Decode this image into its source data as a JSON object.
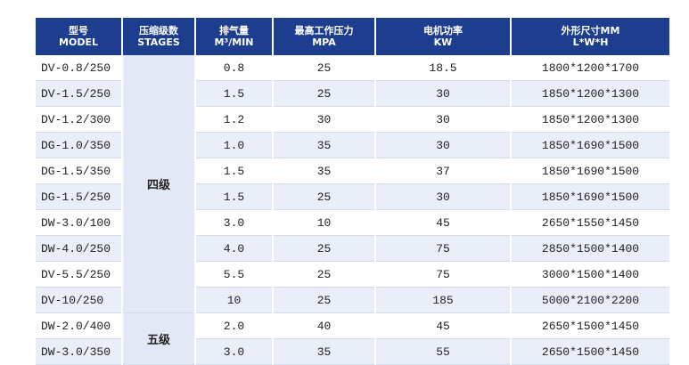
{
  "table": {
    "header": [
      {
        "line1": "型号",
        "line2": "MODEL"
      },
      {
        "line1": "压缩级数",
        "line2": "STAGES"
      },
      {
        "line1": "排气量",
        "line2": "M³/MIN"
      },
      {
        "line1": "最高工作压力",
        "line2": "MPA"
      },
      {
        "line1": "电机功率",
        "line2": "KW"
      },
      {
        "line1": "外形尺寸MM",
        "line2": "L*W*H"
      }
    ],
    "groups": [
      {
        "stage": "四级",
        "rows": [
          [
            "DV-0.8/250",
            "0.8",
            "25",
            "18.5",
            "1800*1200*1700"
          ],
          [
            "DV-1.5/250",
            "1.5",
            "25",
            "30",
            "1850*1200*1300"
          ],
          [
            "DV-1.2/300",
            "1.2",
            "30",
            "30",
            "1850*1200*1300"
          ],
          [
            "DG-1.0/350",
            "1.0",
            "35",
            "30",
            "1850*1690*1500"
          ],
          [
            "DG-1.5/350",
            "1.5",
            "35",
            "37",
            "1850*1690*1500"
          ],
          [
            "DG-1.5/250",
            "1.5",
            "25",
            "30",
            "1850*1690*1500"
          ],
          [
            "DW-3.0/100",
            "3.0",
            "10",
            "45",
            "2650*1550*1450"
          ],
          [
            "DW-4.0/250",
            "4.0",
            "25",
            "75",
            "2850*1500*1400"
          ],
          [
            "DV-5.5/250",
            "5.5",
            "25",
            "75",
            "3000*1500*1400"
          ],
          [
            "DV-10/250",
            "10",
            "25",
            "185",
            "5000*2100*2200"
          ]
        ]
      },
      {
        "stage": "五级",
        "rows": [
          [
            "DW-2.0/400",
            "2.0",
            "40",
            "45",
            "2650*1500*1450"
          ],
          [
            "DW-3.0/350",
            "3.0",
            "35",
            "55",
            "2650*1500*1450"
          ]
        ]
      }
    ]
  }
}
